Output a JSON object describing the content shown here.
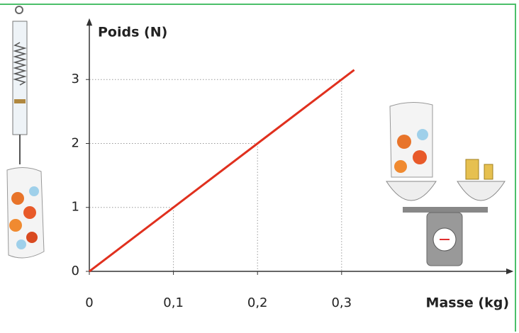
{
  "chart_data": {
    "type": "line",
    "x_label": "Masse (kg)",
    "y_label": "Poids (N)",
    "x": [
      0,
      0.315
    ],
    "values": [
      0,
      3.15
    ],
    "color": "#e0301e",
    "xlim": [
      0,
      0.5
    ],
    "ylim": [
      0,
      3.9
    ],
    "xticks": [
      0,
      {
        "value": 0.1,
        "label": "0,1"
      },
      {
        "value": 0.2,
        "label": "0,2"
      },
      {
        "value": 0.3,
        "label": "0,3"
      }
    ],
    "yticks": [
      0,
      1,
      2,
      3
    ],
    "guides": true
  }
}
